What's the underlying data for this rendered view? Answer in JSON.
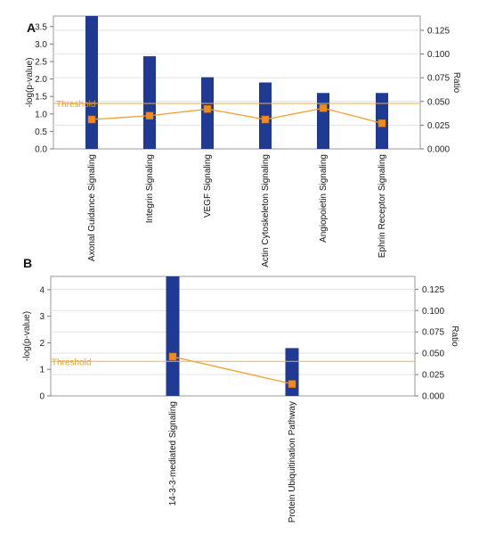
{
  "chart_data": [
    {
      "panel": "A",
      "type": "bar",
      "categories": [
        "Axonal Guidance Signaling",
        "Integrin Signaling",
        "VEGF Signaling",
        "Actin Cytoskeleton Signaling",
        "Angiopoietin Signaling",
        "Ephrin Receptor Signaling"
      ],
      "series": [
        {
          "values": [
            3.8,
            2.65,
            2.05,
            1.9,
            1.6,
            1.6
          ],
          "color": "#1f3a93"
        },
        {
          "values": [
            0.031,
            0.035,
            0.042,
            0.031,
            0.043,
            0.027
          ],
          "color": "#f0a030"
        }
      ],
      "ylabel": "-log(p-value)",
      "y2label": "Ratio",
      "threshold": {
        "label": "Threshold",
        "value": 1.3
      },
      "ylim": [
        0,
        3.8
      ],
      "yticks": [
        "0.0",
        "0.5",
        "1.0",
        "1.5",
        "2.0",
        "2.5",
        "3.0",
        "3.5"
      ],
      "y2lim": [
        0,
        0.14
      ],
      "y2ticks": [
        "0.000",
        "0.025",
        "0.050",
        "0.075",
        "0.100",
        "0.125"
      ],
      "grid": true
    },
    {
      "panel": "B",
      "type": "bar",
      "categories": [
        "14-3-3-mediated Signaling",
        "Protein Ubiquitination Pathway"
      ],
      "series": [
        {
          "values": [
            4.5,
            1.8
          ],
          "color": "#1f3a93"
        },
        {
          "values": [
            0.046,
            0.014
          ],
          "color": "#f0a030"
        }
      ],
      "ylabel": "-log(p-value)",
      "y2label": "Ratio",
      "threshold": {
        "label": "Threshold",
        "value": 1.3
      },
      "ylim": [
        0,
        4.5
      ],
      "yticks": [
        "0",
        "1",
        "2",
        "3",
        "4"
      ],
      "y2lim": [
        0,
        0.14
      ],
      "y2ticks": [
        "0.000",
        "0.025",
        "0.050",
        "0.075",
        "0.100",
        "0.125"
      ],
      "grid": true
    }
  ]
}
